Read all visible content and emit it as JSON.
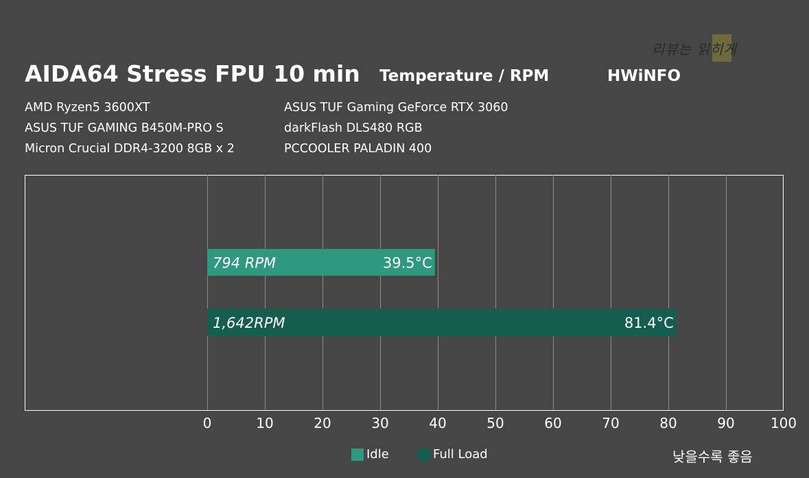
{
  "header": {
    "title": "AIDA64 Stress FPU 10 min",
    "subtitle": "Temperature / RPM",
    "source": "HWiNFO"
  },
  "watermark": "리뷰는 읽히게",
  "specs": {
    "left": [
      "AMD Ryzen5 3600XT",
      "ASUS TUF GAMING B450M-PRO S",
      "Micron Crucial DDR4-3200 8GB x 2"
    ],
    "right": [
      "ASUS TUF Gaming GeForce RTX 3060",
      "darkFlash DLS480 RGB",
      "PCCOOLER PALADIN 400"
    ]
  },
  "footnote": "낮을수록 좋음",
  "colors": {
    "idle": "#2f9980",
    "full_load": "#145d4f",
    "background": "#464646"
  },
  "chart_data": {
    "type": "bar",
    "orientation": "horizontal",
    "title": "AIDA64 Stress FPU 10 min",
    "subtitle": "Temperature / RPM",
    "xlim": [
      0,
      100
    ],
    "x_ticks": [
      "0",
      "10",
      "20",
      "30",
      "40",
      "50",
      "60",
      "70",
      "80",
      "90",
      "100"
    ],
    "grid": true,
    "legend_position": "bottom",
    "series": [
      {
        "name": "Idle",
        "value": 39.5,
        "value_label": "39.5°C",
        "rpm_label": "794 RPM"
      },
      {
        "name": "Full Load",
        "value": 81.4,
        "value_label": "81.4°C",
        "rpm_label": "1,642RPM"
      }
    ]
  }
}
